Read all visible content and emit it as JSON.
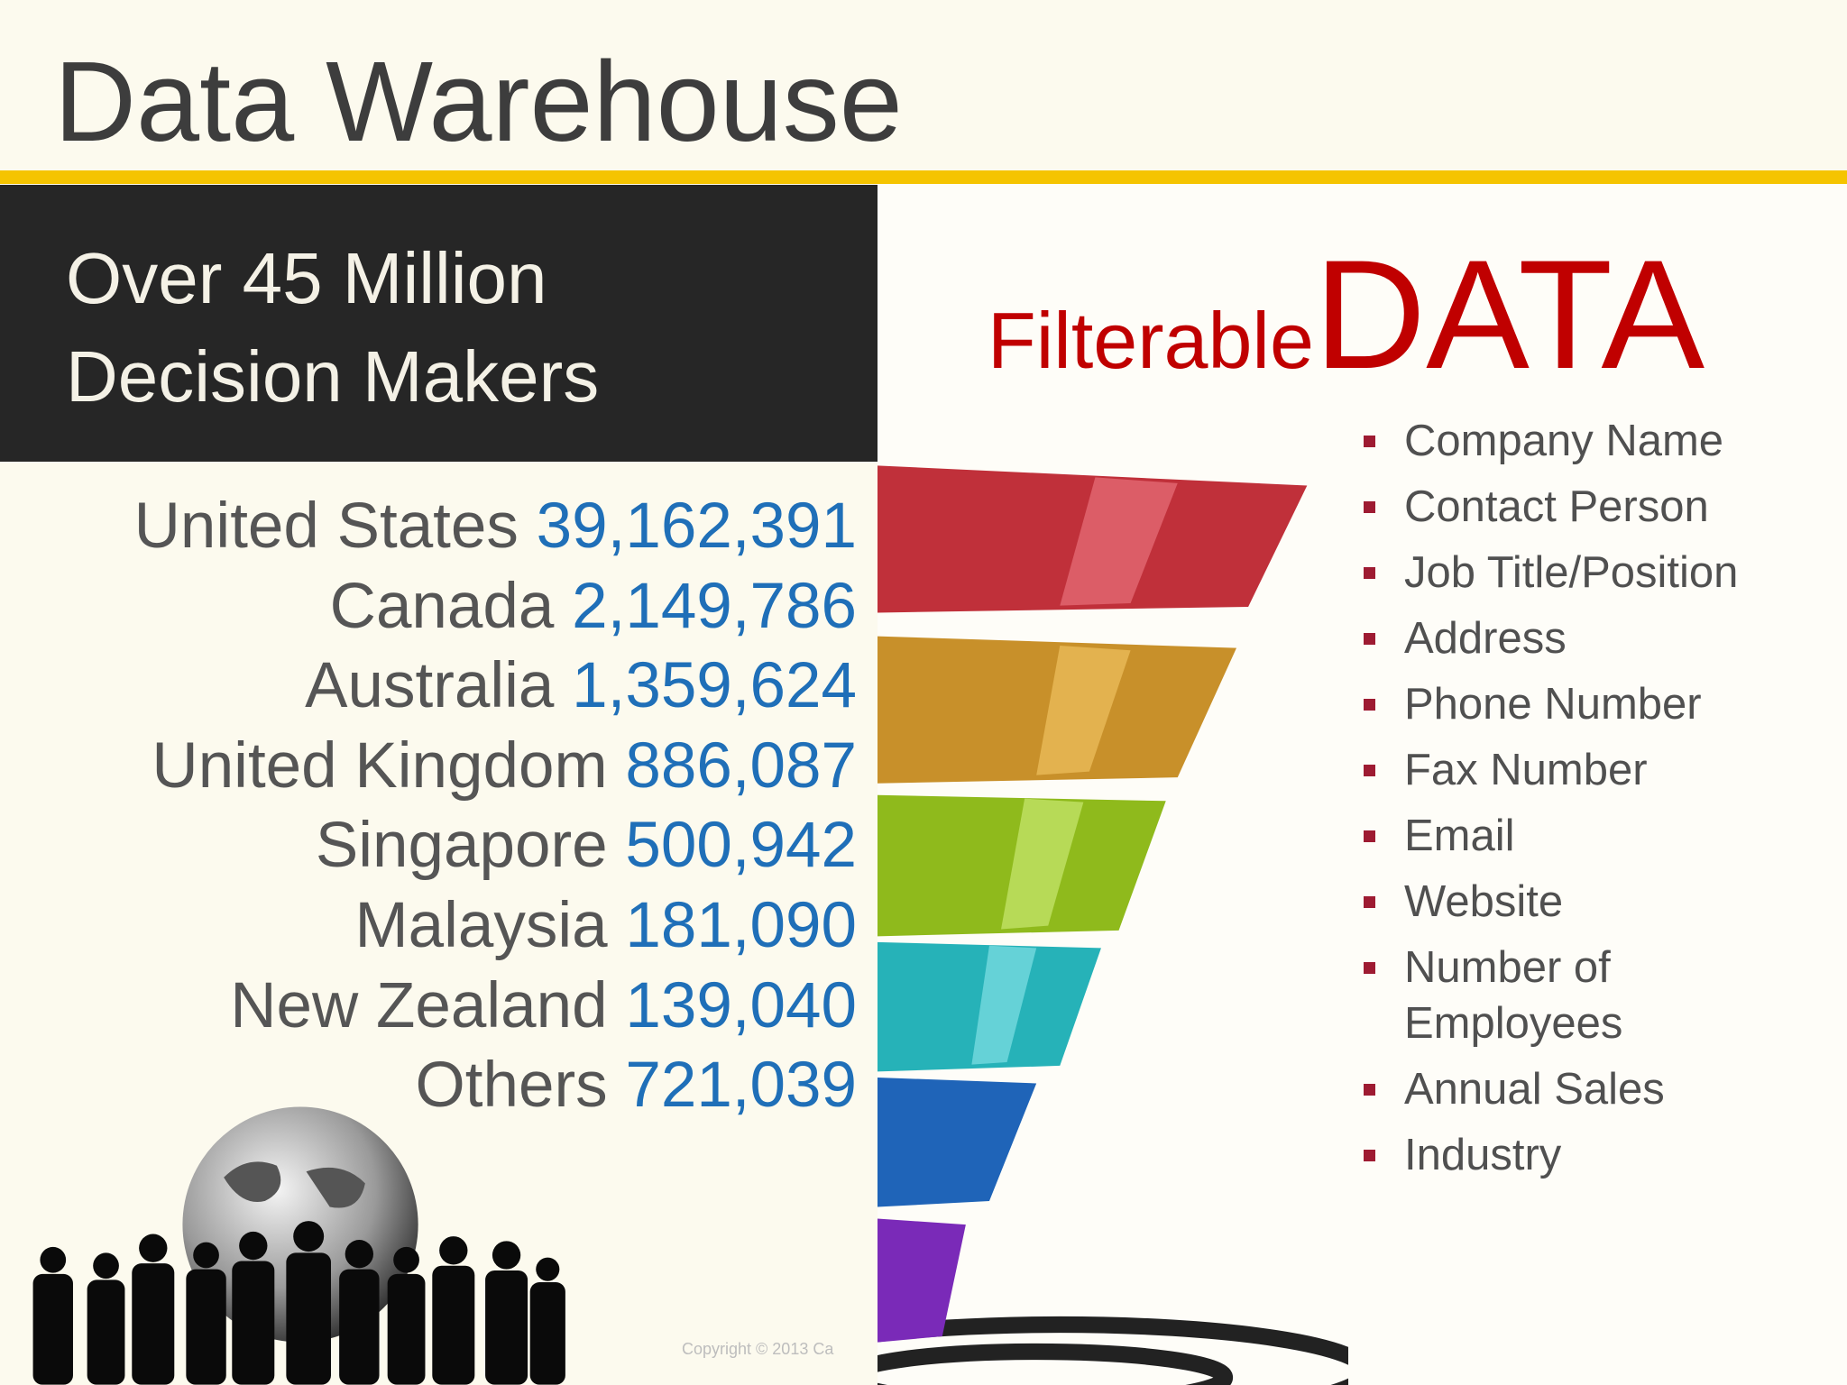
{
  "title": "Data Warehouse",
  "headline": {
    "lines": [
      "Over 45 Million",
      "Decision Makers"
    ]
  },
  "countries": [
    {
      "name": "United States",
      "count": "39,162,391"
    },
    {
      "name": "Canada",
      "count": "2,149,786"
    },
    {
      "name": "Australia",
      "count": "1,359,624"
    },
    {
      "name": "United Kingdom",
      "count": "886,087"
    },
    {
      "name": "Singapore",
      "count": "500,942"
    },
    {
      "name": "Malaysia",
      "count": "181,090"
    },
    {
      "name": "New Zealand",
      "count": "139,040"
    },
    {
      "name": "Others",
      "count": "721,039"
    }
  ],
  "filter_heading": {
    "small": "Filterable",
    "large": "DATA"
  },
  "fields": [
    "Company Name",
    "Contact Person",
    "Job Title/Position",
    "Address",
    "Phone Number",
    "Fax Number",
    "Email",
    "Website",
    "Number of Employees",
    "Annual Sales",
    "Industry"
  ],
  "copyright": "Copyright © 2013 Ca"
}
